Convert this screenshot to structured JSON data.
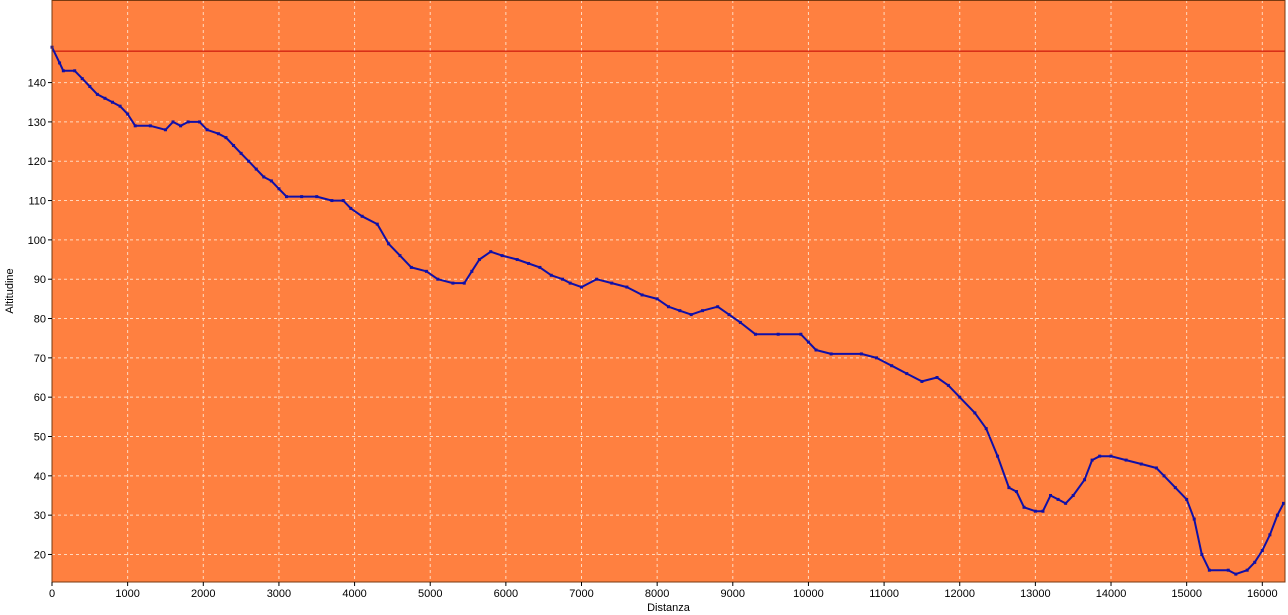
{
  "chart_data": {
    "type": "line",
    "title": "",
    "xlabel": "Distanza",
    "ylabel": "Altitudine",
    "xlim": [
      0,
      16300
    ],
    "ylim": [
      13,
      161
    ],
    "x_ticks": [
      0,
      1000,
      2000,
      3000,
      4000,
      5000,
      6000,
      7000,
      8000,
      9000,
      10000,
      11000,
      12000,
      13000,
      14000,
      15000,
      16000
    ],
    "y_ticks": [
      20,
      30,
      40,
      50,
      60,
      70,
      80,
      90,
      100,
      110,
      120,
      130,
      140
    ],
    "grid": true,
    "reference_line": {
      "y": 148,
      "color": "#c00000"
    },
    "colors": {
      "plot_background": "#ff8040",
      "line": "#1010a8",
      "grid": "#ffd9bf",
      "axis": "#000000",
      "page": "#ffffff"
    },
    "series": [
      {
        "values": [
          [
            0,
            149
          ],
          [
            100,
            145
          ],
          [
            150,
            143
          ],
          [
            300,
            143
          ],
          [
            400,
            141
          ],
          [
            500,
            139
          ],
          [
            600,
            137
          ],
          [
            700,
            136
          ],
          [
            800,
            135
          ],
          [
            900,
            134
          ],
          [
            1000,
            132
          ],
          [
            1100,
            129
          ],
          [
            1300,
            129
          ],
          [
            1500,
            128
          ],
          [
            1600,
            130
          ],
          [
            1700,
            129
          ],
          [
            1800,
            130
          ],
          [
            1950,
            130
          ],
          [
            2050,
            128
          ],
          [
            2200,
            127
          ],
          [
            2300,
            126
          ],
          [
            2400,
            124
          ],
          [
            2500,
            122
          ],
          [
            2600,
            120
          ],
          [
            2700,
            118
          ],
          [
            2800,
            116
          ],
          [
            2900,
            115
          ],
          [
            3000,
            113
          ],
          [
            3100,
            111
          ],
          [
            3300,
            111
          ],
          [
            3500,
            111
          ],
          [
            3700,
            110
          ],
          [
            3850,
            110
          ],
          [
            3950,
            108
          ],
          [
            4100,
            106
          ],
          [
            4300,
            104
          ],
          [
            4450,
            99
          ],
          [
            4600,
            96
          ],
          [
            4750,
            93
          ],
          [
            4950,
            92
          ],
          [
            5100,
            90
          ],
          [
            5300,
            89
          ],
          [
            5450,
            89
          ],
          [
            5550,
            92
          ],
          [
            5650,
            95
          ],
          [
            5800,
            97
          ],
          [
            5950,
            96
          ],
          [
            6150,
            95
          ],
          [
            6300,
            94
          ],
          [
            6450,
            93
          ],
          [
            6600,
            91
          ],
          [
            6750,
            90
          ],
          [
            6850,
            89
          ],
          [
            7000,
            88
          ],
          [
            7200,
            90
          ],
          [
            7400,
            89
          ],
          [
            7600,
            88
          ],
          [
            7800,
            86
          ],
          [
            8000,
            85
          ],
          [
            8150,
            83
          ],
          [
            8300,
            82
          ],
          [
            8450,
            81
          ],
          [
            8600,
            82
          ],
          [
            8800,
            83
          ],
          [
            8950,
            81
          ],
          [
            9100,
            79
          ],
          [
            9300,
            76
          ],
          [
            9600,
            76
          ],
          [
            9900,
            76
          ],
          [
            10000,
            74
          ],
          [
            10100,
            72
          ],
          [
            10300,
            71
          ],
          [
            10700,
            71
          ],
          [
            10900,
            70
          ],
          [
            11100,
            68
          ],
          [
            11300,
            66
          ],
          [
            11500,
            64
          ],
          [
            11700,
            65
          ],
          [
            11850,
            63
          ],
          [
            12000,
            60
          ],
          [
            12200,
            56
          ],
          [
            12350,
            52
          ],
          [
            12500,
            45
          ],
          [
            12650,
            37
          ],
          [
            12750,
            36
          ],
          [
            12850,
            32
          ],
          [
            13000,
            31
          ],
          [
            13100,
            31
          ],
          [
            13200,
            35
          ],
          [
            13300,
            34
          ],
          [
            13400,
            33
          ],
          [
            13500,
            35
          ],
          [
            13650,
            39
          ],
          [
            13750,
            44
          ],
          [
            13850,
            45
          ],
          [
            14000,
            45
          ],
          [
            14200,
            44
          ],
          [
            14400,
            43
          ],
          [
            14600,
            42
          ],
          [
            14700,
            40
          ],
          [
            14850,
            37
          ],
          [
            15000,
            34
          ],
          [
            15100,
            29
          ],
          [
            15200,
            20
          ],
          [
            15300,
            16
          ],
          [
            15550,
            16
          ],
          [
            15650,
            15
          ],
          [
            15800,
            16
          ],
          [
            15900,
            18
          ],
          [
            16000,
            21
          ],
          [
            16100,
            25
          ],
          [
            16200,
            30
          ],
          [
            16280,
            33
          ]
        ]
      }
    ]
  }
}
